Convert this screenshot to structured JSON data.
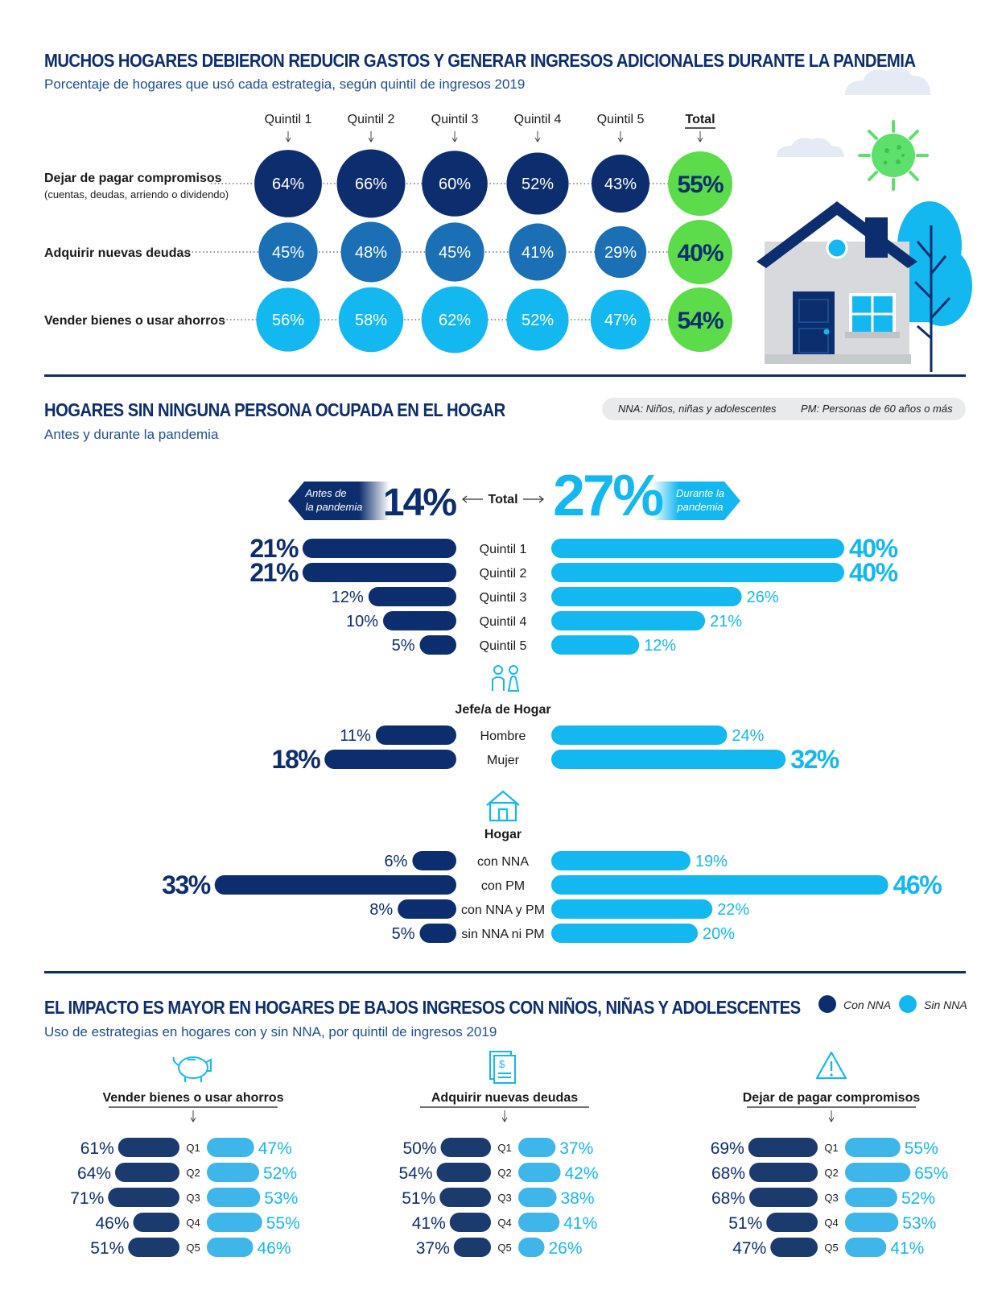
{
  "colors": {
    "navy": "#0d2e6e",
    "blue_mid": "#1a6fb5",
    "cyan": "#14b8f0",
    "green": "#5cdc4a",
    "bar_con": "#1b3a6e",
    "bar_sin": "#3fb6ea"
  },
  "section1": {
    "title": "MUCHOS HOGARES DEBIERON REDUCIR GASTOS Y GENERAR INGRESOS ADICIONALES DURANTE LA PANDEMIA",
    "subtitle": "Porcentaje de hogares que usó cada estrategia, según quintil de ingresos 2019"
  },
  "section2": {
    "title": "HOGARES SIN NINGUNA PERSONA OCUPADA EN EL HOGAR",
    "subtitle": "Antes y durante la pandemia",
    "legend_nna": "NNA: Niños, niñas y adolescentes",
    "legend_pm": "PM: Personas de 60 años o más",
    "arrow_before": [
      "Antes de",
      "la pandemia"
    ],
    "arrow_during": [
      "Durante la",
      "pandemia"
    ],
    "total_label": "Total",
    "total_before": "14%",
    "total_during": "27%",
    "group_jefe": "Jefe/a de Hogar",
    "group_hogar": "Hogar"
  },
  "section3": {
    "title": "EL IMPACTO ES MAYOR EN HOGARES DE BAJOS INGRESOS CON NIÑOS, NIÑAS Y ADOLESCENTES",
    "subtitle": "Uso de estrategias en hogares con y sin NNA, por quintil de ingresos 2019",
    "legend_con": "Con NNA",
    "legend_sin": "Sin NNA"
  },
  "chart_data": [
    {
      "type": "table",
      "columns": [
        "Quintil 1",
        "Quintil 2",
        "Quintil 3",
        "Quintil 4",
        "Quintil 5",
        "Total"
      ],
      "rows": [
        {
          "label": "Dejar de pagar compromisos",
          "sublabel": "(cuentas, deudas, arriendo o dividendo)",
          "values": [
            64,
            66,
            60,
            52,
            43,
            55
          ]
        },
        {
          "label": "Adquirir nuevas deudas",
          "sublabel": "",
          "values": [
            45,
            48,
            45,
            41,
            29,
            40
          ]
        },
        {
          "label": "Vender bienes o usar ahorros",
          "sublabel": "",
          "values": [
            56,
            58,
            62,
            52,
            47,
            54
          ]
        }
      ],
      "unit": "%"
    },
    {
      "type": "bar",
      "series": [
        {
          "name": "Antes de la pandemia"
        },
        {
          "name": "Durante la pandemia"
        }
      ],
      "groups": [
        {
          "title": "",
          "categories": [
            "Quintil 1",
            "Quintil 2",
            "Quintil 3",
            "Quintil 4",
            "Quintil 5"
          ],
          "before": [
            21,
            21,
            12,
            10,
            5
          ],
          "during": [
            40,
            40,
            26,
            21,
            12
          ]
        },
        {
          "title": "Jefe/a de Hogar",
          "categories": [
            "Hombre",
            "Mujer"
          ],
          "before": [
            11,
            18
          ],
          "during": [
            24,
            32
          ]
        },
        {
          "title": "Hogar",
          "categories": [
            "con NNA",
            "con PM",
            "con NNA y PM",
            "sin NNA ni PM"
          ],
          "before": [
            6,
            33,
            8,
            5
          ],
          "during": [
            19,
            46,
            22,
            20
          ]
        }
      ],
      "unit": "%"
    },
    {
      "type": "bar",
      "series": [
        {
          "name": "Con NNA"
        },
        {
          "name": "Sin NNA"
        }
      ],
      "panels": [
        {
          "title": "Vender bienes o usar ahorros",
          "categories": [
            "Q1",
            "Q2",
            "Q3",
            "Q4",
            "Q5"
          ],
          "con": [
            61,
            64,
            71,
            46,
            51
          ],
          "sin": [
            47,
            52,
            53,
            55,
            46
          ]
        },
        {
          "title": "Adquirir nuevas deudas",
          "categories": [
            "Q1",
            "Q2",
            "Q3",
            "Q4",
            "Q5"
          ],
          "con": [
            50,
            54,
            51,
            41,
            37
          ],
          "sin": [
            37,
            42,
            38,
            41,
            26
          ]
        },
        {
          "title": "Dejar de pagar compromisos",
          "categories": [
            "Q1",
            "Q2",
            "Q3",
            "Q4",
            "Q5"
          ],
          "con": [
            69,
            68,
            68,
            51,
            47
          ],
          "sin": [
            55,
            65,
            52,
            53,
            41
          ]
        }
      ],
      "unit": "%"
    }
  ]
}
